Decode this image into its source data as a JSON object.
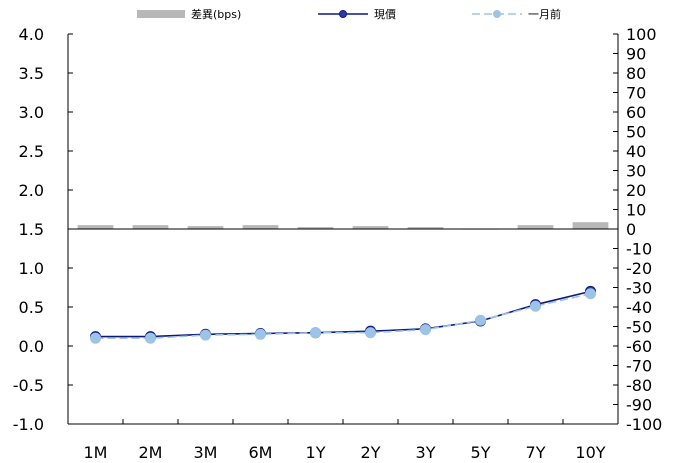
{
  "chart_data": {
    "type": "line",
    "categories": [
      "1M",
      "2M",
      "3M",
      "6M",
      "1Y",
      "2Y",
      "3Y",
      "5Y",
      "7Y",
      "10Y"
    ],
    "series": [
      {
        "name": "差異(bps)",
        "type": "bar",
        "axis": "right",
        "color": "#b8b8b8",
        "values": [
          2,
          2,
          1.5,
          2,
          1,
          1.5,
          1,
          0.2,
          2,
          3.5
        ]
      },
      {
        "name": "現價",
        "type": "line",
        "axis": "left",
        "color": "#0d1a7a",
        "marker_color": "#0d1a7a",
        "values": [
          0.12,
          0.12,
          0.15,
          0.16,
          0.17,
          0.19,
          0.22,
          0.32,
          0.53,
          0.7
        ]
      },
      {
        "name": "一月前",
        "type": "line",
        "axis": "left",
        "dashed": true,
        "color": "#9dc3e6",
        "marker_color": "#9dc3e6",
        "values": [
          0.1,
          0.1,
          0.14,
          0.15,
          0.17,
          0.17,
          0.21,
          0.33,
          0.51,
          0.67
        ]
      }
    ],
    "left_axis": {
      "ylim": [
        -1.0,
        4.0
      ],
      "ticks": [
        "4.0",
        "3.5",
        "3.0",
        "2.5",
        "2.0",
        "1.5",
        "1.0",
        "0.5",
        "0.0",
        "-0.5",
        "-1.0"
      ]
    },
    "right_axis": {
      "ylim": [
        -100,
        100
      ],
      "ticks": [
        "100",
        "90",
        "80",
        "70",
        "60",
        "50",
        "40",
        "30",
        "20",
        "10",
        "0",
        "-10",
        "-20",
        "-30",
        "-40",
        "-50",
        "-60",
        "-70",
        "-80",
        "-90",
        "-100"
      ]
    },
    "legend_position": "top",
    "grid": false
  }
}
